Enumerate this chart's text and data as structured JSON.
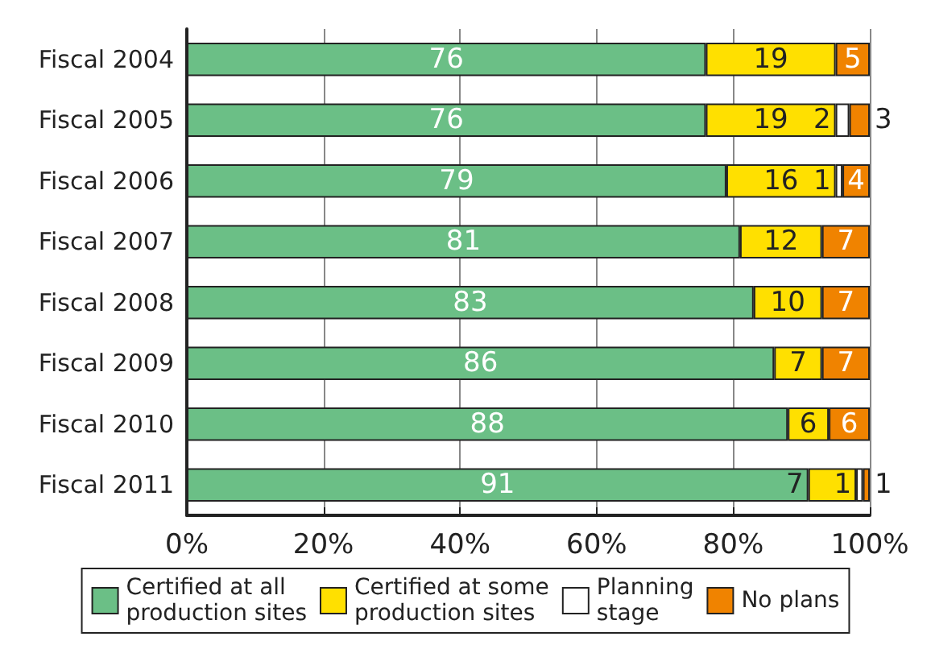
{
  "chart_data": {
    "type": "bar",
    "orientation": "horizontal",
    "stacked": true,
    "categories": [
      "Fiscal 2004",
      "Fiscal 2005",
      "Fiscal 2006",
      "Fiscal 2007",
      "Fiscal 2008",
      "Fiscal 2009",
      "Fiscal 2010",
      "Fiscal 2011"
    ],
    "series": [
      {
        "name": "Certified at all production sites",
        "color": "#6bbf86",
        "values": [
          76,
          76,
          79,
          81,
          83,
          86,
          88,
          91
        ],
        "value_labels": [
          "76",
          "76",
          "79",
          "81",
          "83",
          "86",
          "88",
          "91"
        ]
      },
      {
        "name": "Certified at some production sites",
        "color": "#ffe000",
        "values": [
          19,
          19,
          16,
          12,
          10,
          7,
          6,
          7
        ],
        "value_labels": [
          "19",
          "19",
          "16",
          "12",
          "10",
          "7",
          "6",
          "7"
        ]
      },
      {
        "name": "Planning stage",
        "color": "#ffffff",
        "values": [
          null,
          2,
          1,
          null,
          null,
          null,
          null,
          1
        ],
        "value_labels": [
          null,
          "2",
          "1",
          null,
          null,
          null,
          null,
          "1"
        ]
      },
      {
        "name": "No plans",
        "color": "#f08300",
        "values": [
          5,
          3,
          4,
          7,
          7,
          7,
          6,
          1
        ],
        "value_labels": [
          "5",
          "3",
          "4",
          "7",
          "7",
          "7",
          "6",
          "1"
        ]
      }
    ],
    "xlim": [
      0,
      100
    ],
    "xticks": [
      {
        "value": 0,
        "label": "0%"
      },
      {
        "value": 20,
        "label": "20%"
      },
      {
        "value": 40,
        "label": "40%"
      },
      {
        "value": 60,
        "label": "60%"
      },
      {
        "value": 80,
        "label": "80%"
      },
      {
        "value": 100,
        "label": "100%"
      }
    ],
    "grid": "x",
    "legend": "bottom"
  }
}
